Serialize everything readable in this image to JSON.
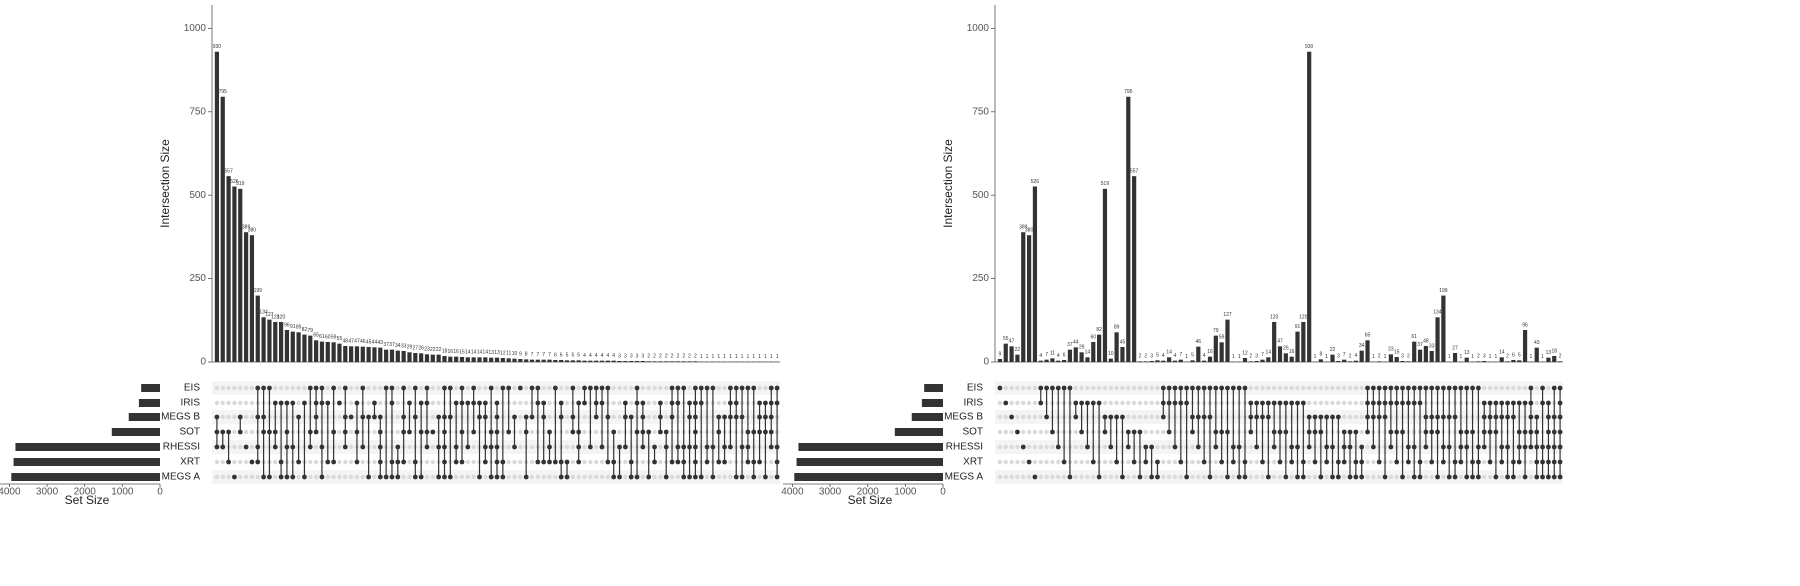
{
  "chart_data": [
    {
      "type": "upset",
      "ylabel": "Intersection Size",
      "xlabel": "Set Size",
      "bar_color": "#333333",
      "ylim": [
        0,
        1070
      ],
      "yticks": [
        0,
        250,
        500,
        750,
        1000
      ],
      "set_names": [
        "EIS",
        "IRIS",
        "MEGS B",
        "SOT",
        "RHESSI",
        "XRT",
        "MEGS A"
      ],
      "set_sizes": [
        500,
        560,
        830,
        1280,
        3840,
        3890,
        3950
      ],
      "set_xlim": [
        4250,
        0
      ],
      "set_xticks": [
        4000,
        3000,
        2000,
        1000,
        0
      ],
      "values": [
        930,
        795,
        557,
        526,
        519,
        389,
        380,
        199,
        134,
        127,
        120,
        120,
        96,
        91,
        89,
        82,
        79,
        65,
        61,
        60,
        59,
        55,
        48,
        47,
        47,
        46,
        45,
        44,
        43,
        37,
        37,
        34,
        33,
        29,
        27,
        26,
        23,
        22,
        22,
        18,
        16,
        16,
        15,
        14,
        14,
        14,
        14,
        13,
        13,
        12,
        11,
        10,
        9,
        8,
        7,
        7,
        7,
        7,
        6,
        6,
        5,
        5,
        5,
        4,
        4,
        4,
        4,
        4,
        4,
        3,
        3,
        3,
        3,
        3,
        2,
        2,
        2,
        2,
        2,
        2,
        2,
        2,
        2,
        1,
        1,
        1,
        1,
        1,
        1,
        1,
        1,
        1,
        1,
        1,
        1,
        1,
        1
      ],
      "sets": [
        [
          2,
          3,
          4
        ],
        [
          3,
          4
        ],
        [
          3,
          5
        ],
        [
          6
        ],
        [
          2,
          3
        ],
        [
          4
        ],
        [
          5
        ],
        [
          0,
          2,
          4,
          5
        ],
        [
          0,
          2,
          3,
          6
        ],
        [
          0,
          3,
          6
        ],
        [
          1,
          3,
          4
        ],
        [
          1,
          5,
          6
        ],
        [
          1,
          3,
          4,
          6
        ],
        [
          1,
          4,
          6
        ],
        [
          2,
          5
        ],
        [
          1,
          6
        ],
        [
          0,
          3,
          4
        ],
        [
          0,
          1,
          2,
          3
        ],
        [
          0,
          1,
          4,
          6
        ],
        [
          1,
          5
        ],
        [
          0,
          3,
          5
        ],
        [
          1
        ],
        [
          0,
          2,
          3,
          4
        ],
        [
          2
        ],
        [
          1,
          3,
          5
        ],
        [
          0,
          2,
          4
        ],
        [
          2,
          6
        ],
        [
          1,
          2
        ],
        [
          2,
          3,
          4,
          5,
          6
        ],
        [
          0,
          6
        ],
        [
          0,
          1,
          5,
          6
        ],
        [
          4,
          5,
          6
        ],
        [
          0,
          2,
          3,
          5
        ],
        [
          1,
          3
        ],
        [
          0,
          2,
          5,
          6
        ],
        [
          1,
          3,
          6
        ],
        [
          0,
          1,
          3,
          4
        ],
        [
          3
        ],
        [
          2,
          4,
          6
        ],
        [
          0,
          2,
          3,
          4,
          5,
          6
        ],
        [
          0,
          2,
          6
        ],
        [
          1,
          4,
          5
        ],
        [
          0,
          1,
          3,
          5
        ],
        [
          1,
          4
        ],
        [
          0,
          1,
          3
        ],
        [
          1,
          2,
          6
        ],
        [
          1,
          2,
          4,
          5
        ],
        [
          0,
          3,
          4,
          6
        ],
        [
          1,
          2,
          3,
          4,
          5,
          6
        ],
        [
          0,
          5,
          6
        ],
        [
          0,
          3
        ],
        [
          2,
          4
        ],
        [
          0
        ],
        [
          2,
          3,
          6
        ],
        [
          0,
          2
        ],
        [
          0,
          1,
          5
        ],
        [
          1,
          2,
          5
        ],
        [
          3,
          4,
          5
        ],
        [
          0,
          5
        ],
        [
          1,
          2,
          5,
          6
        ],
        [
          5,
          6
        ],
        [
          0,
          2,
          3
        ],
        [
          1,
          3,
          4,
          5
        ],
        [
          0,
          1
        ],
        [
          0,
          4
        ],
        [
          0,
          1,
          2
        ],
        [
          0,
          1,
          4
        ],
        [
          0,
          2,
          5
        ],
        [
          3,
          5,
          6
        ],
        [
          4,
          6
        ],
        [
          1,
          2,
          4
        ],
        [
          2,
          5,
          6
        ],
        [
          0,
          1,
          3,
          6
        ],
        [
          1,
          2,
          3,
          4
        ],
        [
          3,
          6
        ],
        [
          4,
          5
        ],
        [
          1,
          2,
          3
        ],
        [
          3,
          4,
          6
        ],
        [
          0,
          1,
          2,
          5
        ],
        [
          0,
          1,
          4,
          5
        ],
        [
          0,
          4,
          5,
          6
        ],
        [
          1,
          2,
          4,
          6
        ],
        [
          0,
          1,
          2,
          3,
          4,
          5,
          6
        ],
        [
          0,
          1,
          6
        ],
        [
          0,
          4,
          5
        ],
        [
          0,
          4,
          6
        ],
        [
          2,
          3,
          5
        ],
        [
          2,
          4,
          5
        ],
        [
          0,
          1,
          2,
          4
        ],
        [
          0,
          1,
          2,
          6
        ],
        [
          0,
          2,
          4,
          6
        ],
        [
          0,
          3,
          4,
          5
        ],
        [
          0,
          3,
          5,
          6
        ],
        [
          1,
          2,
          3,
          5
        ],
        [
          1,
          2,
          3,
          6
        ],
        [
          0,
          1,
          2,
          3,
          4
        ],
        [
          0,
          1,
          4,
          5,
          6
        ]
      ]
    },
    {
      "type": "upset",
      "ylabel": "Intersection Size",
      "xlabel": "Set Size",
      "bar_color": "#333333",
      "ylim": [
        0,
        1070
      ],
      "yticks": [
        0,
        250,
        500,
        750,
        1000
      ],
      "set_names": [
        "EIS",
        "IRIS",
        "MEGS B",
        "SOT",
        "RHESSI",
        "XRT",
        "MEGS A"
      ],
      "set_sizes": [
        500,
        560,
        830,
        1280,
        3840,
        3890,
        3950
      ],
      "set_xlim": [
        4250,
        0
      ],
      "set_xticks": [
        4000,
        3000,
        2000,
        1000,
        0
      ],
      "values": [
        9,
        55,
        47,
        22,
        389,
        380,
        526,
        4,
        7,
        11,
        4,
        6,
        37,
        44,
        29,
        14,
        60,
        82,
        519,
        10,
        89,
        45,
        795,
        557,
        2,
        2,
        3,
        5,
        4,
        14,
        4,
        7,
        1,
        5,
        46,
        4,
        16,
        79,
        59,
        127,
        1,
        1,
        12,
        2,
        3,
        7,
        14,
        120,
        47,
        26,
        16,
        91,
        120,
        930,
        1,
        8,
        1,
        22,
        3,
        7,
        2,
        4,
        34,
        65,
        1,
        2,
        1,
        23,
        15,
        3,
        2,
        61,
        37,
        48,
        33,
        134,
        199,
        1,
        27,
        1,
        13,
        1,
        2,
        3,
        1,
        1,
        14,
        2,
        6,
        5,
        96,
        1,
        43,
        1,
        13,
        18,
        2
      ],
      "sets": [
        [
          0
        ],
        [
          1
        ],
        [
          2
        ],
        [
          3
        ],
        [
          4
        ],
        [
          5
        ],
        [
          6
        ],
        [
          0,
          1
        ],
        [
          0,
          2
        ],
        [
          0,
          3
        ],
        [
          0,
          4
        ],
        [
          0,
          5
        ],
        [
          0,
          6
        ],
        [
          1,
          2
        ],
        [
          1,
          3
        ],
        [
          1,
          4
        ],
        [
          1,
          5
        ],
        [
          1,
          6
        ],
        [
          2,
          3
        ],
        [
          2,
          4
        ],
        [
          2,
          5
        ],
        [
          2,
          6
        ],
        [
          3,
          4
        ],
        [
          3,
          5
        ],
        [
          3,
          6
        ],
        [
          4,
          5
        ],
        [
          4,
          6
        ],
        [
          5,
          6
        ],
        [
          0,
          1,
          2
        ],
        [
          0,
          1,
          3
        ],
        [
          0,
          1,
          4
        ],
        [
          0,
          1,
          5
        ],
        [
          0,
          1,
          6
        ],
        [
          0,
          2,
          3
        ],
        [
          0,
          2,
          4
        ],
        [
          0,
          2,
          5
        ],
        [
          0,
          2,
          6
        ],
        [
          0,
          3,
          4
        ],
        [
          0,
          3,
          5
        ],
        [
          0,
          3,
          6
        ],
        [
          0,
          4,
          5
        ],
        [
          0,
          4,
          6
        ],
        [
          0,
          5,
          6
        ],
        [
          1,
          2,
          3
        ],
        [
          1,
          2,
          4
        ],
        [
          1,
          2,
          5
        ],
        [
          1,
          2,
          6
        ],
        [
          1,
          3,
          4
        ],
        [
          1,
          3,
          5
        ],
        [
          1,
          3,
          6
        ],
        [
          1,
          4,
          5
        ],
        [
          1,
          4,
          6
        ],
        [
          1,
          5,
          6
        ],
        [
          2,
          3,
          4
        ],
        [
          2,
          3,
          5
        ],
        [
          2,
          3,
          6
        ],
        [
          2,
          4,
          5
        ],
        [
          2,
          4,
          6
        ],
        [
          2,
          5,
          6
        ],
        [
          3,
          4,
          5
        ],
        [
          3,
          4,
          6
        ],
        [
          3,
          5,
          6
        ],
        [
          4,
          5,
          6
        ],
        [
          0,
          1,
          2,
          3
        ],
        [
          0,
          1,
          2,
          4
        ],
        [
          0,
          1,
          2,
          5
        ],
        [
          0,
          1,
          2,
          6
        ],
        [
          0,
          1,
          3,
          4
        ],
        [
          0,
          1,
          3,
          5
        ],
        [
          0,
          1,
          3,
          6
        ],
        [
          0,
          1,
          4,
          5
        ],
        [
          0,
          1,
          4,
          6
        ],
        [
          0,
          1,
          5,
          6
        ],
        [
          0,
          2,
          3,
          4
        ],
        [
          0,
          2,
          3,
          5
        ],
        [
          0,
          2,
          3,
          6
        ],
        [
          0,
          2,
          4,
          5
        ],
        [
          0,
          2,
          4,
          6
        ],
        [
          0,
          2,
          5,
          6
        ],
        [
          0,
          3,
          4,
          5
        ],
        [
          0,
          3,
          4,
          6
        ],
        [
          0,
          3,
          5,
          6
        ],
        [
          0,
          4,
          5,
          6
        ],
        [
          1,
          2,
          3,
          4
        ],
        [
          1,
          2,
          3,
          5
        ],
        [
          1,
          2,
          3,
          6
        ],
        [
          1,
          2,
          4,
          5
        ],
        [
          1,
          2,
          4,
          6
        ],
        [
          1,
          2,
          5,
          6
        ],
        [
          1,
          3,
          4,
          5
        ],
        [
          1,
          3,
          4,
          6
        ],
        [
          0,
          1,
          2,
          3,
          4
        ],
        [
          2,
          3,
          4,
          5,
          6
        ],
        [
          0,
          1,
          4,
          5,
          6
        ],
        [
          1,
          2,
          3,
          4,
          5,
          6
        ],
        [
          0,
          2,
          3,
          4,
          5,
          6
        ],
        [
          0,
          1,
          2,
          3,
          4,
          5,
          6
        ]
      ]
    }
  ]
}
